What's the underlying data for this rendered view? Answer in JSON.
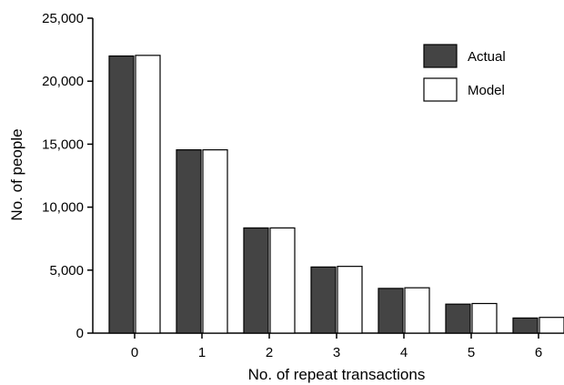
{
  "chart_data": {
    "type": "bar",
    "title": "",
    "xlabel": "No. of repeat transactions",
    "ylabel": "No. of people",
    "categories": [
      "0",
      "1",
      "2",
      "3",
      "4",
      "5",
      "6"
    ],
    "series": [
      {
        "name": "Actual",
        "values": [
          22000,
          14550,
          8350,
          5250,
          3550,
          2300,
          1200
        ],
        "color": "#444444"
      },
      {
        "name": "Model",
        "values": [
          22050,
          14550,
          8350,
          5300,
          3600,
          2350,
          1250
        ],
        "color": "#ffffff"
      }
    ],
    "ylim": [
      0,
      25000
    ],
    "yticks": [
      0,
      5000,
      10000,
      15000,
      20000,
      25000
    ],
    "ytick_labels": [
      "0",
      "5,000",
      "10,000",
      "15,000",
      "20,000",
      "25,000"
    ],
    "grid": false,
    "legend_position": "top-right"
  }
}
